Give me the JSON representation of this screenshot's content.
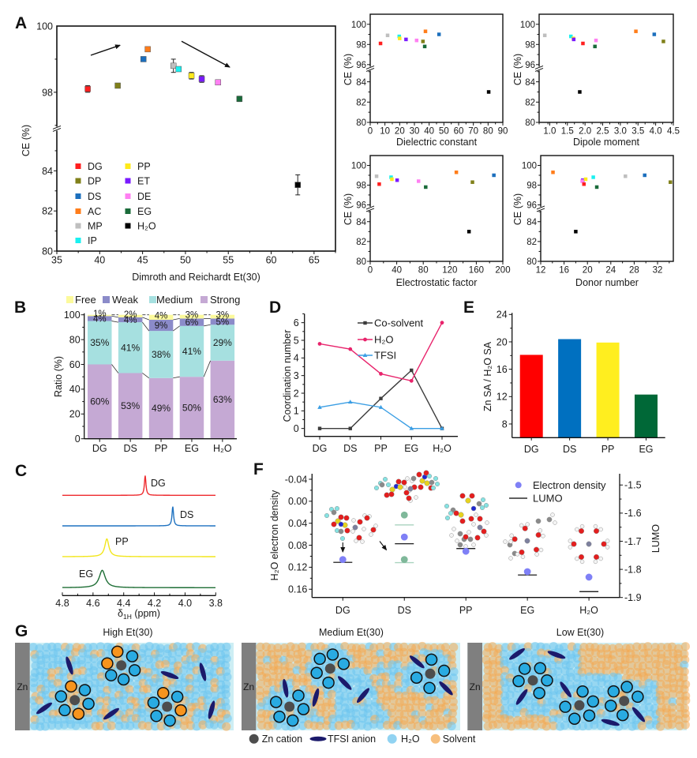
{
  "panel_labels": {
    "A": "A",
    "B": "B",
    "C": "C",
    "D": "D",
    "E": "E",
    "F": "F",
    "G": "G"
  },
  "solvents": [
    {
      "name": "DG",
      "color": "#ff1f1f"
    },
    {
      "name": "DP",
      "color": "#80801a"
    },
    {
      "name": "DS",
      "color": "#1c6fbd"
    },
    {
      "name": "AC",
      "color": "#ff7d1a"
    },
    {
      "name": "MP",
      "color": "#bfbfbf"
    },
    {
      "name": "IP",
      "color": "#1af0f0"
    },
    {
      "name": "PP",
      "color": "#ffea1a"
    },
    {
      "name": "ET",
      "color": "#7a1aff"
    },
    {
      "name": "DE",
      "color": "#ff80f2"
    },
    {
      "name": "EG",
      "color": "#1a6b3a"
    },
    {
      "name": "H₂O",
      "color": "#000000"
    }
  ],
  "chart_data": [
    {
      "id": "A-main",
      "type": "scatter",
      "title": "",
      "xlabel": "Dimroth and Reichardt Et(30)",
      "ylabel": "CE (%)",
      "xlim": [
        35,
        67.5
      ],
      "xticks": [
        35,
        40,
        45,
        50,
        55,
        60,
        65
      ],
      "xminor_step": 2.5,
      "y_segments": [
        [
          80,
          86.1
        ],
        [
          96.9,
          100
        ]
      ],
      "yticks": [
        80,
        82,
        84,
        98,
        100
      ],
      "axis_break": true,
      "legend": {
        "placement": "lower-left",
        "columns": [
          [
            "DG",
            "DP",
            "DS",
            "AC",
            "MP",
            "IP"
          ],
          [
            "PP",
            "ET",
            "DE",
            "EG",
            "H₂O"
          ]
        ]
      },
      "annotations": [
        {
          "type": "arrow",
          "direction": "up-right"
        },
        {
          "type": "arrow",
          "direction": "down-right"
        }
      ],
      "points": [
        {
          "name": "DG",
          "x": 38.6,
          "y": 98.1,
          "err": 0.1
        },
        {
          "name": "DP",
          "x": 42.1,
          "y": 98.2,
          "err": 0.05
        },
        {
          "name": "DS",
          "x": 45.1,
          "y": 99.0,
          "err": 0.05
        },
        {
          "name": "AC",
          "x": 45.6,
          "y": 99.3,
          "err": 0.05
        },
        {
          "name": "MP",
          "x": 48.6,
          "y": 98.8,
          "err": 0.2
        },
        {
          "name": "IP",
          "x": 49.2,
          "y": 98.7,
          "err": 0.05
        },
        {
          "name": "PP",
          "x": 50.7,
          "y": 98.5,
          "err": 0.1
        },
        {
          "name": "ET",
          "x": 51.9,
          "y": 98.4,
          "err": 0.1
        },
        {
          "name": "DE",
          "x": 53.8,
          "y": 98.3,
          "err": 0.05
        },
        {
          "name": "EG",
          "x": 56.3,
          "y": 97.8,
          "err": 0.08
        },
        {
          "name": "H₂O",
          "x": 63.1,
          "y": 83.3,
          "err": 0.5
        }
      ]
    },
    {
      "id": "A-dielectric",
      "type": "scatter",
      "xlabel": "Dielectric constant",
      "ylabel": "CE (%)",
      "xlim": [
        0,
        90
      ],
      "xticks": [
        0,
        10,
        20,
        30,
        40,
        50,
        60,
        70,
        80,
        90
      ],
      "xminor_step": 5,
      "y_segments": [
        [
          80,
          85.3
        ],
        [
          95.6,
          101
        ]
      ],
      "yticks": [
        80,
        82,
        84,
        96,
        98,
        100
      ],
      "axis_break": true,
      "points": [
        {
          "name": "DG",
          "x": 7.0,
          "y": 98.1
        },
        {
          "name": "MP",
          "x": 11.8,
          "y": 98.9
        },
        {
          "name": "IP",
          "x": 19.7,
          "y": 98.8
        },
        {
          "name": "PP",
          "x": 20.0,
          "y": 98.6
        },
        {
          "name": "ET",
          "x": 24.3,
          "y": 98.5
        },
        {
          "name": "DE",
          "x": 31.5,
          "y": 98.4
        },
        {
          "name": "DP",
          "x": 35.8,
          "y": 98.3
        },
        {
          "name": "EG",
          "x": 37.0,
          "y": 97.8
        },
        {
          "name": "AC",
          "x": 37.5,
          "y": 99.3
        },
        {
          "name": "DS",
          "x": 46.7,
          "y": 99.0
        },
        {
          "name": "H₂O",
          "x": 80.4,
          "y": 83.0
        }
      ]
    },
    {
      "id": "A-dipole",
      "type": "scatter",
      "xlabel": "Dipole moment",
      "ylabel": "CE (%)",
      "xlim": [
        0.7,
        4.5
      ],
      "xticks": [
        1.0,
        1.5,
        2.0,
        2.5,
        3.0,
        3.5,
        4.0,
        4.5
      ],
      "xtick_labels": [
        "1.0",
        "1.5",
        "2.0",
        "2.5",
        "3.0",
        "3.5",
        "4.0",
        "4.5"
      ],
      "xminor_step": 0.25,
      "y_segments": [
        [
          80,
          85.3
        ],
        [
          95.6,
          101
        ]
      ],
      "yticks": [
        80,
        82,
        84,
        96,
        98,
        100
      ],
      "axis_break": true,
      "points": [
        {
          "name": "MP",
          "x": 0.86,
          "y": 98.9
        },
        {
          "name": "IP",
          "x": 1.6,
          "y": 98.8
        },
        {
          "name": "PP",
          "x": 1.67,
          "y": 98.6
        },
        {
          "name": "ET",
          "x": 1.68,
          "y": 98.5
        },
        {
          "name": "DG",
          "x": 1.94,
          "y": 98.1
        },
        {
          "name": "EG",
          "x": 2.28,
          "y": 97.8
        },
        {
          "name": "DE",
          "x": 2.31,
          "y": 98.4
        },
        {
          "name": "H₂O",
          "x": 1.85,
          "y": 83.0
        },
        {
          "name": "AC",
          "x": 3.44,
          "y": 99.3
        },
        {
          "name": "DS",
          "x": 3.96,
          "y": 99.0
        },
        {
          "name": "DP",
          "x": 4.22,
          "y": 98.3
        }
      ]
    },
    {
      "id": "A-electrostatic",
      "type": "scatter",
      "xlabel": "Electrostatic factor",
      "ylabel": "CE (%)",
      "xlim": [
        0,
        200
      ],
      "xticks": [
        0,
        40,
        80,
        120,
        160,
        200
      ],
      "xminor_step": 20,
      "y_segments": [
        [
          80,
          85.3
        ],
        [
          95.6,
          101
        ]
      ],
      "yticks": [
        80,
        82,
        84,
        96,
        98,
        100
      ],
      "axis_break": true,
      "points": [
        {
          "name": "MP",
          "x": 9.6,
          "y": 98.9
        },
        {
          "name": "DG",
          "x": 13.6,
          "y": 98.1
        },
        {
          "name": "IP",
          "x": 31.5,
          "y": 98.8
        },
        {
          "name": "PP",
          "x": 32.7,
          "y": 98.6
        },
        {
          "name": "ET",
          "x": 40.6,
          "y": 98.5
        },
        {
          "name": "DE",
          "x": 72.9,
          "y": 98.4
        },
        {
          "name": "EG",
          "x": 83.7,
          "y": 97.8
        },
        {
          "name": "AC",
          "x": 129.9,
          "y": 99.3
        },
        {
          "name": "H₂O",
          "x": 149.0,
          "y": 83.0
        },
        {
          "name": "DP",
          "x": 154.2,
          "y": 98.3
        },
        {
          "name": "DS",
          "x": 186.5,
          "y": 99.0
        }
      ]
    },
    {
      "id": "A-donor",
      "type": "scatter",
      "xlabel": "Donor number",
      "ylabel": "CE (%)",
      "xlim": [
        12,
        34.7
      ],
      "xticks": [
        12,
        16,
        20,
        24,
        28,
        32
      ],
      "xminor_step": 2,
      "y_segments": [
        [
          80,
          85.3
        ],
        [
          95.6,
          101
        ]
      ],
      "yticks": [
        80,
        82,
        84,
        96,
        98,
        100
      ],
      "axis_break": true,
      "points": [
        {
          "name": "AC",
          "x": 14.1,
          "y": 99.3
        },
        {
          "name": "ET",
          "x": 19.2,
          "y": 98.5
        },
        {
          "name": "DE",
          "x": 19.1,
          "y": 98.4
        },
        {
          "name": "DG",
          "x": 19.4,
          "y": 98.1
        },
        {
          "name": "PP",
          "x": 19.7,
          "y": 98.6
        },
        {
          "name": "IP",
          "x": 21.0,
          "y": 98.8
        },
        {
          "name": "EG",
          "x": 21.6,
          "y": 97.8
        },
        {
          "name": "H₂O",
          "x": 18.0,
          "y": 83.0
        },
        {
          "name": "MP",
          "x": 26.5,
          "y": 98.9
        },
        {
          "name": "DS",
          "x": 29.8,
          "y": 99.0
        },
        {
          "name": "DP",
          "x": 34.2,
          "y": 98.3
        }
      ]
    },
    {
      "id": "B",
      "type": "bar",
      "stacked": true,
      "ylabel": "Ratio (%)",
      "xlabel": "",
      "categories": [
        "DG",
        "DS",
        "PP",
        "EG",
        "H₂O"
      ],
      "ylim": [
        0,
        100
      ],
      "yticks": [
        0,
        20,
        40,
        60,
        80,
        100
      ],
      "value_suffix": "%",
      "legend": {
        "placement": "top",
        "order": [
          "Free",
          "Weak",
          "Medium",
          "Strong"
        ]
      },
      "series": [
        {
          "name": "Strong",
          "color": "#c5a9d4",
          "values": [
            60,
            53,
            49,
            50,
            63
          ]
        },
        {
          "name": "Medium",
          "color": "#a6e0e0",
          "values": [
            35,
            41,
            38,
            41,
            29
          ]
        },
        {
          "name": "Weak",
          "color": "#8b8bc9",
          "values": [
            4,
            4,
            9,
            6,
            5
          ]
        },
        {
          "name": "Free",
          "color": "#fcfa9c",
          "values": [
            1,
            2,
            4,
            3,
            3
          ]
        }
      ]
    },
    {
      "id": "C",
      "type": "line",
      "title": "",
      "xlabel_parts": {
        "symbol": "δ",
        "subscript": "1H",
        "unit": " (ppm)"
      },
      "xlim": [
        4.8,
        3.8
      ],
      "xticks": [
        4.8,
        4.6,
        4.4,
        4.2,
        4.0,
        3.8
      ],
      "xtick_labels": [
        "4.8",
        "4.6",
        "4.4",
        "4.2",
        "4.0",
        "3.8"
      ],
      "series": [
        {
          "name": "DG",
          "color": "#ee2a2e",
          "peak_ppm": 4.26,
          "hwhm_ppm": 0.006
        },
        {
          "name": "DS",
          "color": "#1f72c0",
          "peak_ppm": 4.08,
          "hwhm_ppm": 0.006
        },
        {
          "name": "PP",
          "color": "#f2e61c",
          "peak_ppm": 4.51,
          "hwhm_ppm": 0.016
        },
        {
          "name": "EG",
          "color": "#1e6e35",
          "peak_ppm": 4.54,
          "hwhm_ppm": 0.024
        }
      ]
    },
    {
      "id": "D",
      "type": "line",
      "ylabel": "Coordination number",
      "categories": [
        "DG",
        "DS",
        "PP",
        "EG",
        "H₂O"
      ],
      "ylim": [
        -0.45,
        6.5
      ],
      "yticks": [
        0,
        1,
        2,
        3,
        4,
        5,
        6
      ],
      "legend": {
        "placement": "top-right"
      },
      "series": [
        {
          "name": "Co-solvent",
          "color": "#3c3c3c",
          "marker": "square",
          "values": [
            0,
            0,
            1.7,
            3.3,
            0
          ]
        },
        {
          "name": "H₂O",
          "color": "#e8246c",
          "marker": "circle",
          "values": [
            4.8,
            4.5,
            3.1,
            2.7,
            6.0
          ]
        },
        {
          "name": "TFSI",
          "color": "#3a9ee4",
          "marker": "triangle",
          "values": [
            1.2,
            1.5,
            1.2,
            0,
            0
          ]
        }
      ]
    },
    {
      "id": "E",
      "type": "bar",
      "ylabel": "Zn SA / H₂O SA",
      "categories": [
        "DG",
        "DS",
        "PP",
        "EG"
      ],
      "values": [
        18.1,
        20.4,
        19.9,
        12.3
      ],
      "colors": [
        "#ff0000",
        "#0070c0",
        "#ffee1f",
        "#006837"
      ],
      "ylim": [
        6,
        24
      ],
      "yticks": [
        8,
        12,
        16,
        20,
        24
      ]
    },
    {
      "id": "F",
      "type": "scatter",
      "ylabel_left": "H₂O electron density",
      "ylabel_right": "LUMO",
      "categories": [
        "DG",
        "DS",
        "PP",
        "EG",
        "H₂O"
      ],
      "ylim_left": [
        -0.05,
        0.175
      ],
      "left_axis_inverted": true,
      "yticks_left": [
        -0.04,
        0.0,
        0.04,
        0.08,
        0.12,
        0.16
      ],
      "ytick_labels_left": [
        "-0.04",
        "0.00",
        "0.04",
        "0.08",
        "0.12",
        "0.16"
      ],
      "ylim_right": [
        -1.9,
        -1.46
      ],
      "yticks_right": [
        -1.5,
        -1.6,
        -1.7,
        -1.8,
        -1.9
      ],
      "ytick_labels_right": [
        "-1.5",
        "-1.6",
        "-1.7",
        "-1.8",
        "-1.9"
      ],
      "legend": {
        "placement": "top-right",
        "items": [
          {
            "name": "Electron density",
            "kind": "dot",
            "color": "#7f80f6"
          },
          {
            "name": "LUMO",
            "kind": "line",
            "color": "#000000"
          }
        ]
      },
      "series": [
        {
          "name": "Electron density",
          "axis": "left",
          "color": "#7f80f6",
          "values": [
            0.106,
            0.065,
            0.091,
            0.128,
            0.138
          ]
        },
        {
          "name": "LUMO",
          "axis": "right",
          "color": "#000000",
          "values": [
            -1.775,
            -1.709,
            -1.726,
            -1.82,
            -1.879
          ]
        }
      ],
      "extra": [
        {
          "category": "DS",
          "color": "#7fb89a",
          "line_color": "#a9d3bf",
          "electron_density": [
            0.025,
            0.106
          ],
          "lumo": [
            -1.642,
            -1.776
          ]
        }
      ]
    }
  ],
  "panel_g": {
    "electrode_label": "Zn",
    "boxes": [
      {
        "title": "High Et(30)",
        "shells": [
          [
            "solvent",
            "h2o",
            "h2o",
            "solvent",
            "h2o",
            "h2o"
          ],
          [
            "solvent",
            "h2o",
            "h2o",
            "h2o",
            "h2o",
            "solvent"
          ],
          [
            "solvent",
            "h2o",
            "solvent",
            "h2o",
            "h2o",
            "h2o"
          ]
        ]
      },
      {
        "title": "Medium Et(30)",
        "shells": [
          [
            "h2o",
            "h2o",
            "h2o",
            "h2o",
            "h2o"
          ],
          [
            "h2o",
            "h2o",
            "h2o",
            "h2o",
            "h2o"
          ],
          [
            "h2o",
            "h2o",
            "h2o",
            "h2o"
          ]
        ]
      },
      {
        "title": "Low Et(30)",
        "shells": [
          [
            "h2o",
            "h2o",
            "h2o",
            "h2o",
            "h2o"
          ],
          [
            "h2o",
            "h2o",
            "h2o",
            "h2o",
            "h2o"
          ],
          [
            "h2o",
            "h2o",
            "h2o",
            "h2o",
            "h2o"
          ]
        ]
      }
    ],
    "colors": {
      "zn": "#4d4d4d",
      "tfsi": "#1b1a6b",
      "h2o": "#29abe2",
      "solvent": "#f7941d",
      "h2o_bg": "#6cc4ee",
      "solvent_bg": "#f4aa52",
      "box_bg": "#cdeef4",
      "electrode": "#7f7f7f"
    },
    "legend": [
      {
        "label": "Zn cation",
        "kind": "zn"
      },
      {
        "label": "TFSI anion",
        "kind": "tfsi"
      },
      {
        "label": "H₂O",
        "kind": "h2o"
      },
      {
        "label": "Solvent",
        "kind": "solvent"
      }
    ]
  }
}
